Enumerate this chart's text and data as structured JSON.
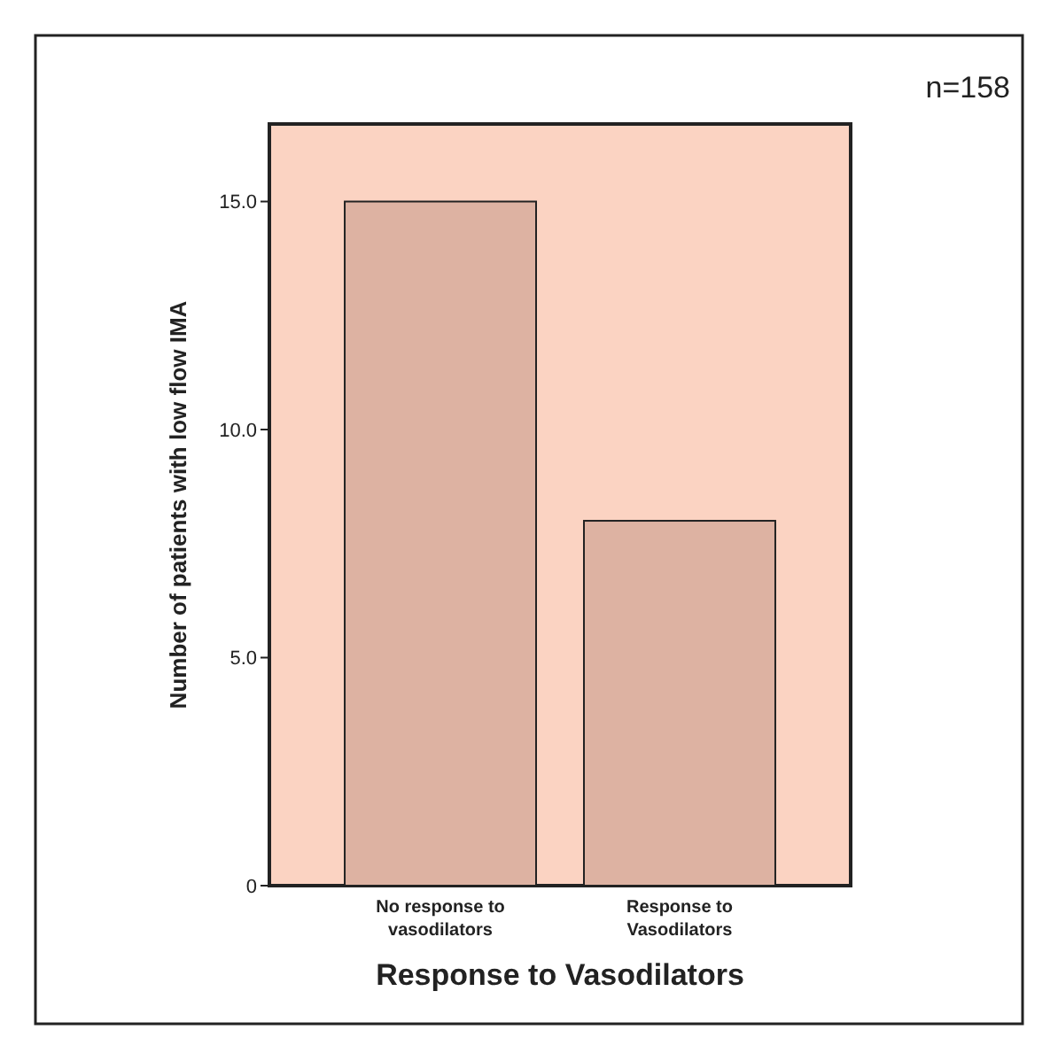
{
  "chart_data": {
    "type": "bar",
    "xlabel": "Response to Vasodilators",
    "ylabel": "Number of patients with low flow IMA",
    "categories": [
      "No response to vasodilators",
      "Response to Vasodilators"
    ],
    "values": [
      15,
      8
    ],
    "color": "#ddb2a2",
    "ylim": [
      0,
      16.7
    ],
    "yticks": [
      0,
      {
        "value": 5,
        "label": "5.0"
      },
      {
        "value": 10,
        "label": "10.0"
      },
      {
        "value": 15,
        "label": "15.0"
      }
    ],
    "grid": false,
    "annotations": [
      "n=158"
    ]
  }
}
